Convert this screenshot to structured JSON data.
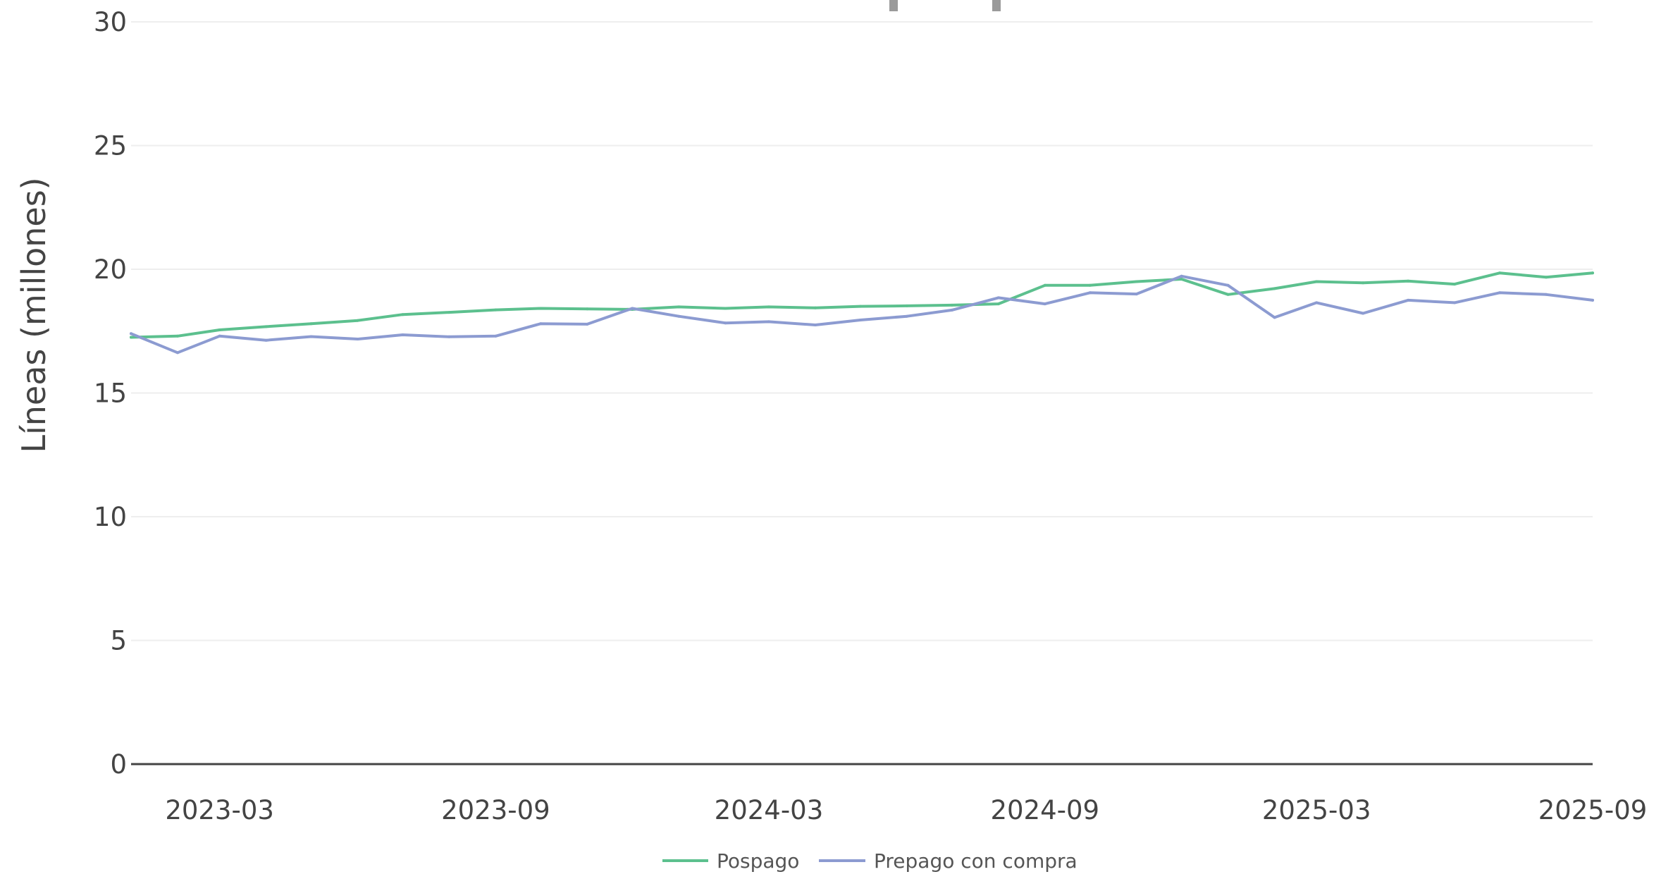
{
  "chart_data": {
    "type": "line",
    "title": "",
    "xlabel": "",
    "ylabel": "Líneas (millones)",
    "ylim": [
      0,
      30
    ],
    "yticks": [
      0,
      5,
      10,
      15,
      20,
      25,
      30
    ],
    "xtick_labels": [
      "2023-03",
      "2023-09",
      "2024-03",
      "2024-09",
      "2025-03",
      "2025-09"
    ],
    "xtick_dates": [
      "2023-03-01",
      "2023-09-01",
      "2024-03-01",
      "2024-09-01",
      "2025-03-01",
      "2025-09-01"
    ],
    "x": [
      "2023-01",
      "2023-02",
      "2023-03",
      "2023-04",
      "2023-05",
      "2023-06",
      "2023-07",
      "2023-08",
      "2023-09",
      "2023-10",
      "2023-11",
      "2023-12",
      "2024-01",
      "2024-02",
      "2024-03",
      "2024-04",
      "2024-05",
      "2024-06",
      "2024-07",
      "2024-08",
      "2024-09",
      "2024-10",
      "2024-11",
      "2024-12",
      "2025-01",
      "2025-02",
      "2025-03",
      "2025-04",
      "2025-05",
      "2025-06",
      "2025-07",
      "2025-08",
      "2025-09"
    ],
    "grid": true,
    "legend_position": "bottom",
    "series": [
      {
        "name": "Pospago",
        "color": "#5cc08e",
        "values": [
          17.25,
          17.3,
          17.55,
          17.68,
          17.8,
          17.93,
          18.17,
          18.26,
          18.36,
          18.42,
          18.4,
          18.38,
          18.48,
          18.42,
          18.48,
          18.44,
          18.5,
          18.52,
          18.55,
          18.6,
          19.35,
          19.35,
          19.5,
          19.6,
          18.98,
          19.22,
          19.5,
          19.45,
          19.52,
          19.4,
          19.85,
          19.68,
          19.85
        ]
      },
      {
        "name": "Prepago con compra",
        "color": "#8c9bd1",
        "values": [
          17.4,
          16.63,
          17.3,
          17.13,
          17.28,
          17.18,
          17.35,
          17.27,
          17.3,
          17.8,
          17.78,
          18.42,
          18.1,
          17.83,
          17.88,
          17.75,
          17.95,
          18.1,
          18.35,
          18.85,
          18.6,
          19.05,
          19.0,
          19.72,
          19.35,
          18.05,
          18.65,
          18.22,
          18.75,
          18.65,
          19.05,
          18.98,
          18.75
        ]
      }
    ]
  }
}
